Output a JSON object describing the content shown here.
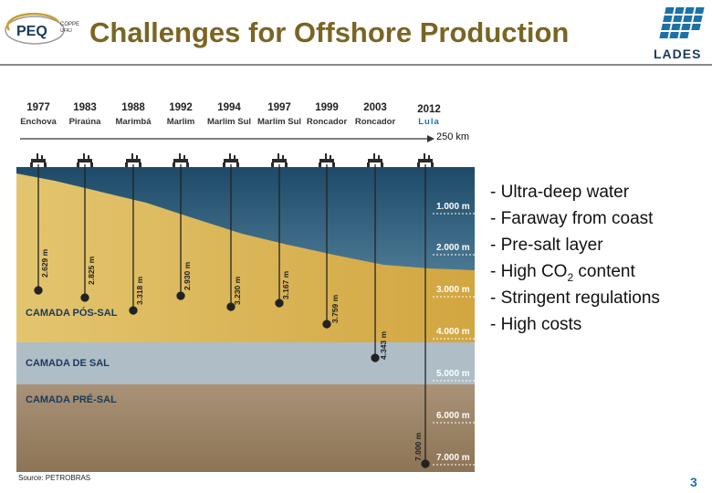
{
  "header": {
    "title": "Challenges for Offshore Production",
    "peq_logo_text": "PEQ",
    "coppe_text": "COPPE",
    "ufrj_text": "UFRJ",
    "lades_logo_text": "LADES"
  },
  "diagram": {
    "wells": [
      {
        "year": "1977",
        "field": "Enchova",
        "depth_label": "2.629 m",
        "depth_m": 2629
      },
      {
        "year": "1983",
        "field": "Piraúna",
        "depth_label": "2.825 m",
        "depth_m": 2825
      },
      {
        "year": "1988",
        "field": "Marimbá",
        "depth_label": "3.318 m",
        "depth_m": 3318
      },
      {
        "year": "1992",
        "field": "Marlim",
        "depth_label": "2.930 m",
        "depth_m": 2930
      },
      {
        "year": "1994",
        "field": "Marlim Sul",
        "depth_label": "3.230 m",
        "depth_m": 3230
      },
      {
        "year": "1997",
        "field": "Marlim Sul",
        "depth_label": "3.167 m",
        "depth_m": 3167
      },
      {
        "year": "1999",
        "field": "Roncador",
        "depth_label": "3.759 m",
        "depth_m": 3759
      },
      {
        "year": "2003",
        "field": "Roncador",
        "depth_label": "4.343 m",
        "depth_m": 4343
      },
      {
        "year": "2012",
        "field": "Lula",
        "depth_label": "7.000 m",
        "depth_m": 7000
      }
    ],
    "distance_label": "250 km",
    "depth_scale": [
      "1.000 m",
      "2.000 m",
      "3.000 m",
      "4.000 m",
      "5.000 m",
      "6.000 m",
      "7.000 m"
    ],
    "layers": {
      "pos_sal": "CAMADA PÓS-SAL",
      "sal": "CAMADA DE SAL",
      "pre_sal": "CAMADA PRÉ-SAL"
    },
    "source": "Source: PETROBRAS"
  },
  "bullets": [
    {
      "prefix": "- Ultra-deep water"
    },
    {
      "prefix": "- Faraway from coast"
    },
    {
      "prefix": "- Pre-salt layer"
    },
    {
      "prefix": "- High CO",
      "sub": "2",
      "suffix": " content"
    },
    {
      "prefix": "- Stringent regulations"
    },
    {
      "prefix": "- High costs"
    }
  ],
  "footer": {
    "page_number": "3"
  },
  "colors": {
    "title": "#7a6523",
    "water_top": "#1e4f6e",
    "water_bottom": "#5a8aa6",
    "pos_sal": "#d9b456",
    "sal": "#a9bac4",
    "pre_sal": "#9a8466",
    "accent_blue": "#1b72a8"
  }
}
